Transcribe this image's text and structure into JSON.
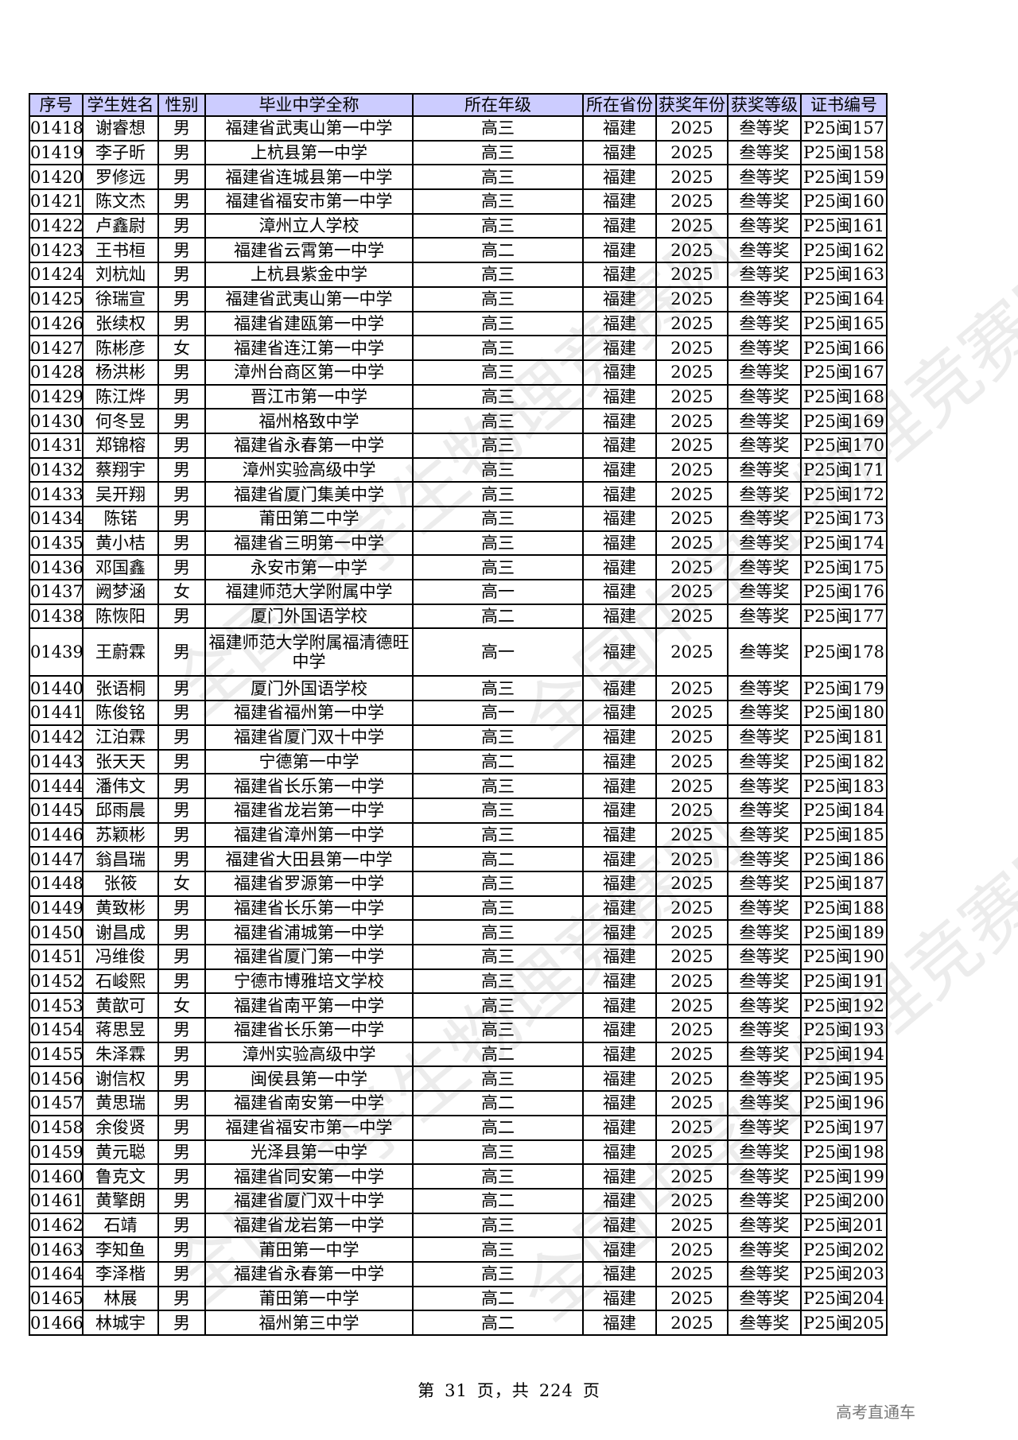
{
  "table": {
    "headers": [
      "序号",
      "学生姓名",
      "性别",
      "毕业中学全称",
      "所在年级",
      "所在省份",
      "获奖年份",
      "获奖等级",
      "证书编号"
    ],
    "rows": [
      [
        "01418",
        "谢睿想",
        "男",
        "福建省武夷山第一中学",
        "高三",
        "福建",
        "2025",
        "叁等奖",
        "P25闽157"
      ],
      [
        "01419",
        "李子昕",
        "男",
        "上杭县第一中学",
        "高三",
        "福建",
        "2025",
        "叁等奖",
        "P25闽158"
      ],
      [
        "01420",
        "罗修远",
        "男",
        "福建省连城县第一中学",
        "高三",
        "福建",
        "2025",
        "叁等奖",
        "P25闽159"
      ],
      [
        "01421",
        "陈文杰",
        "男",
        "福建省福安市第一中学",
        "高三",
        "福建",
        "2025",
        "叁等奖",
        "P25闽160"
      ],
      [
        "01422",
        "卢鑫尉",
        "男",
        "漳州立人学校",
        "高三",
        "福建",
        "2025",
        "叁等奖",
        "P25闽161"
      ],
      [
        "01423",
        "王书桓",
        "男",
        "福建省云霄第一中学",
        "高二",
        "福建",
        "2025",
        "叁等奖",
        "P25闽162"
      ],
      [
        "01424",
        "刘杭灿",
        "男",
        "上杭县紫金中学",
        "高三",
        "福建",
        "2025",
        "叁等奖",
        "P25闽163"
      ],
      [
        "01425",
        "徐瑞宣",
        "男",
        "福建省武夷山第一中学",
        "高三",
        "福建",
        "2025",
        "叁等奖",
        "P25闽164"
      ],
      [
        "01426",
        "张续权",
        "男",
        "福建省建瓯第一中学",
        "高三",
        "福建",
        "2025",
        "叁等奖",
        "P25闽165"
      ],
      [
        "01427",
        "陈彬彦",
        "女",
        "福建省连江第一中学",
        "高三",
        "福建",
        "2025",
        "叁等奖",
        "P25闽166"
      ],
      [
        "01428",
        "杨洪彬",
        "男",
        "漳州台商区第一中学",
        "高三",
        "福建",
        "2025",
        "叁等奖",
        "P25闽167"
      ],
      [
        "01429",
        "陈江烨",
        "男",
        "晋江市第一中学",
        "高三",
        "福建",
        "2025",
        "叁等奖",
        "P25闽168"
      ],
      [
        "01430",
        "何冬昱",
        "男",
        "福州格致中学",
        "高三",
        "福建",
        "2025",
        "叁等奖",
        "P25闽169"
      ],
      [
        "01431",
        "郑锦榕",
        "男",
        "福建省永春第一中学",
        "高三",
        "福建",
        "2025",
        "叁等奖",
        "P25闽170"
      ],
      [
        "01432",
        "蔡翔宇",
        "男",
        "漳州实验高级中学",
        "高三",
        "福建",
        "2025",
        "叁等奖",
        "P25闽171"
      ],
      [
        "01433",
        "吴开翔",
        "男",
        "福建省厦门集美中学",
        "高三",
        "福建",
        "2025",
        "叁等奖",
        "P25闽172"
      ],
      [
        "01434",
        "陈锘",
        "男",
        "莆田第二中学",
        "高三",
        "福建",
        "2025",
        "叁等奖",
        "P25闽173"
      ],
      [
        "01435",
        "黄小桔",
        "男",
        "福建省三明第一中学",
        "高三",
        "福建",
        "2025",
        "叁等奖",
        "P25闽174"
      ],
      [
        "01436",
        "邓国鑫",
        "男",
        "永安市第一中学",
        "高三",
        "福建",
        "2025",
        "叁等奖",
        "P25闽175"
      ],
      [
        "01437",
        "阙梦涵",
        "女",
        "福建师范大学附属中学",
        "高一",
        "福建",
        "2025",
        "叁等奖",
        "P25闽176"
      ],
      [
        "01438",
        "陈恢阳",
        "男",
        "厦门外国语学校",
        "高二",
        "福建",
        "2025",
        "叁等奖",
        "P25闽177"
      ],
      [
        "01439",
        "王蔚霖",
        "男",
        "福建师范大学附属福清德旺中学",
        "高一",
        "福建",
        "2025",
        "叁等奖",
        "P25闽178"
      ],
      [
        "01440",
        "张语桐",
        "男",
        "厦门外国语学校",
        "高三",
        "福建",
        "2025",
        "叁等奖",
        "P25闽179"
      ],
      [
        "01441",
        "陈俊铭",
        "男",
        "福建省福州第一中学",
        "高一",
        "福建",
        "2025",
        "叁等奖",
        "P25闽180"
      ],
      [
        "01442",
        "江泊霖",
        "男",
        "福建省厦门双十中学",
        "高三",
        "福建",
        "2025",
        "叁等奖",
        "P25闽181"
      ],
      [
        "01443",
        "张天天",
        "男",
        "宁德第一中学",
        "高二",
        "福建",
        "2025",
        "叁等奖",
        "P25闽182"
      ],
      [
        "01444",
        "潘伟文",
        "男",
        "福建省长乐第一中学",
        "高三",
        "福建",
        "2025",
        "叁等奖",
        "P25闽183"
      ],
      [
        "01445",
        "邱雨晨",
        "男",
        "福建省龙岩第一中学",
        "高三",
        "福建",
        "2025",
        "叁等奖",
        "P25闽184"
      ],
      [
        "01446",
        "苏颖彬",
        "男",
        "福建省漳州第一中学",
        "高三",
        "福建",
        "2025",
        "叁等奖",
        "P25闽185"
      ],
      [
        "01447",
        "翁昌瑞",
        "男",
        "福建省大田县第一中学",
        "高二",
        "福建",
        "2025",
        "叁等奖",
        "P25闽186"
      ],
      [
        "01448",
        "张筱",
        "女",
        "福建省罗源第一中学",
        "高三",
        "福建",
        "2025",
        "叁等奖",
        "P25闽187"
      ],
      [
        "01449",
        "黄致彬",
        "男",
        "福建省长乐第一中学",
        "高三",
        "福建",
        "2025",
        "叁等奖",
        "P25闽188"
      ],
      [
        "01450",
        "谢昌成",
        "男",
        "福建省浦城第一中学",
        "高三",
        "福建",
        "2025",
        "叁等奖",
        "P25闽189"
      ],
      [
        "01451",
        "冯维俊",
        "男",
        "福建省厦门第一中学",
        "高三",
        "福建",
        "2025",
        "叁等奖",
        "P25闽190"
      ],
      [
        "01452",
        "石峻熙",
        "男",
        "宁德市博雅培文学校",
        "高三",
        "福建",
        "2025",
        "叁等奖",
        "P25闽191"
      ],
      [
        "01453",
        "黄歆可",
        "女",
        "福建省南平第一中学",
        "高三",
        "福建",
        "2025",
        "叁等奖",
        "P25闽192"
      ],
      [
        "01454",
        "蒋思昱",
        "男",
        "福建省长乐第一中学",
        "高三",
        "福建",
        "2025",
        "叁等奖",
        "P25闽193"
      ],
      [
        "01455",
        "朱泽霖",
        "男",
        "漳州实验高级中学",
        "高二",
        "福建",
        "2025",
        "叁等奖",
        "P25闽194"
      ],
      [
        "01456",
        "谢信权",
        "男",
        "闽侯县第一中学",
        "高三",
        "福建",
        "2025",
        "叁等奖",
        "P25闽195"
      ],
      [
        "01457",
        "黄思瑞",
        "男",
        "福建省南安第一中学",
        "高二",
        "福建",
        "2025",
        "叁等奖",
        "P25闽196"
      ],
      [
        "01458",
        "余俊贤",
        "男",
        "福建省福安市第一中学",
        "高二",
        "福建",
        "2025",
        "叁等奖",
        "P25闽197"
      ],
      [
        "01459",
        "黄元聪",
        "男",
        "光泽县第一中学",
        "高三",
        "福建",
        "2025",
        "叁等奖",
        "P25闽198"
      ],
      [
        "01460",
        "鲁克文",
        "男",
        "福建省同安第一中学",
        "高三",
        "福建",
        "2025",
        "叁等奖",
        "P25闽199"
      ],
      [
        "01461",
        "黄擎朗",
        "男",
        "福建省厦门双十中学",
        "高二",
        "福建",
        "2025",
        "叁等奖",
        "P25闽200"
      ],
      [
        "01462",
        "石靖",
        "男",
        "福建省龙岩第一中学",
        "高三",
        "福建",
        "2025",
        "叁等奖",
        "P25闽201"
      ],
      [
        "01463",
        "李知鱼",
        "男",
        "莆田第一中学",
        "高三",
        "福建",
        "2025",
        "叁等奖",
        "P25闽202"
      ],
      [
        "01464",
        "李泽楷",
        "男",
        "福建省永春第一中学",
        "高三",
        "福建",
        "2025",
        "叁等奖",
        "P25闽203"
      ],
      [
        "01465",
        "林展",
        "男",
        "莆田第一中学",
        "高二",
        "福建",
        "2025",
        "叁等奖",
        "P25闽204"
      ],
      [
        "01466",
        "林城宇",
        "男",
        "福州第三中学",
        "高二",
        "福建",
        "2025",
        "叁等奖",
        "P25闽205"
      ]
    ]
  },
  "footer": {
    "page_prefix": "第",
    "page_current": "31",
    "page_mid": "页，共",
    "page_total": "224",
    "page_suffix": "页"
  },
  "brand": "高考直通车",
  "watermark": "全国中学生物理竞赛网",
  "colors": {
    "header_bg": "#ccccff",
    "border": "#000000"
  }
}
